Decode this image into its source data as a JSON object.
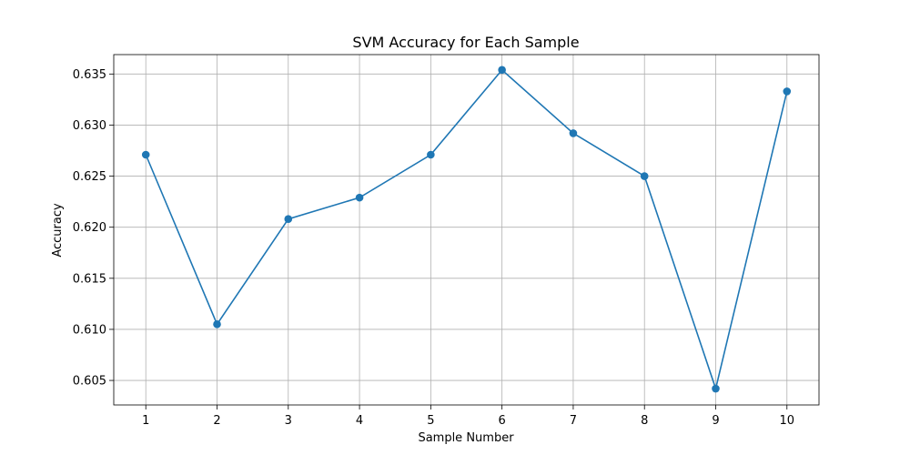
{
  "chart_data": {
    "type": "line",
    "title": "SVM Accuracy for Each Sample",
    "xlabel": "Sample Number",
    "ylabel": "Accuracy",
    "x": [
      1,
      2,
      3,
      4,
      5,
      6,
      7,
      8,
      9,
      10
    ],
    "x_ticks": [
      "1",
      "2",
      "3",
      "4",
      "5",
      "6",
      "7",
      "8",
      "9",
      "10"
    ],
    "y_ticks": [
      "0.605",
      "0.610",
      "0.615",
      "0.620",
      "0.625",
      "0.630",
      "0.635"
    ],
    "xlim": [
      0.55,
      10.45
    ],
    "ylim": [
      0.6026,
      0.6369
    ],
    "grid": true,
    "marker": "circle",
    "color": "#1f77b4",
    "series": [
      {
        "values": [
          0.6271,
          0.6105,
          0.6208,
          0.6229,
          0.6271,
          0.6354,
          0.6292,
          0.625,
          0.6042,
          0.6333
        ]
      }
    ]
  }
}
